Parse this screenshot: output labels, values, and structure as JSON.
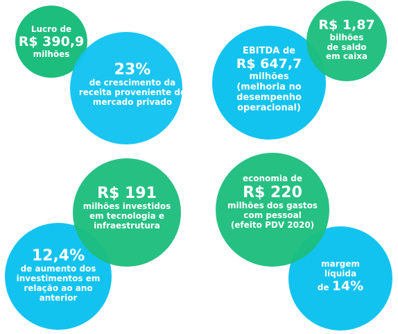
{
  "colors": {
    "green": "#1dbd7e",
    "cyan": "#12c3f0",
    "text": "#ffffff"
  },
  "stats": {
    "lucro": {
      "line1": "Lucro de",
      "value": "R$ 390,9",
      "line3": "milhões"
    },
    "crescimento": {
      "value": "23%",
      "line2": "de crescimento da",
      "line3": "receita proveniente do",
      "line4": "mercado privado"
    },
    "ebitda": {
      "line1": "EBITDA de",
      "value": "R$ 647,7",
      "line3": "milhões",
      "line4": "(melhoria no",
      "line5": "desempenho",
      "line6": "operacional)"
    },
    "saldo": {
      "value": "R$ 1,87",
      "line2": "bilhões",
      "line3": "de saldo",
      "line4": "em caixa"
    },
    "investidos": {
      "value": "R$ 191",
      "line2_strong": "milhões",
      "line2_rest": " investidos",
      "line3": "em tecnologia e",
      "line4": "infraestrutura"
    },
    "aumento": {
      "value": "12,4%",
      "line2": "de aumento dos",
      "line3": "investimentos em",
      "line4": "relação ao ano",
      "line5": "anterior"
    },
    "economia": {
      "line1": "economia de",
      "value": "R$ 220",
      "line3": "milhões dos gastos",
      "line4": "com pessoal",
      "line5": "(efeito PDV 2020)"
    },
    "margem": {
      "line1": "margem",
      "line2": "líquida",
      "line3_prefix": "de ",
      "value": "14%"
    }
  }
}
